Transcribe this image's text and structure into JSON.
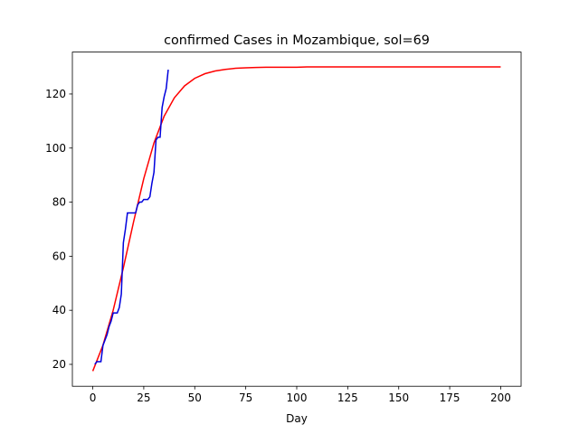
{
  "chart_data": {
    "type": "line",
    "title": "confirmed Cases in Mozambique, sol=69",
    "x_label": "Day",
    "xlim": [
      -10,
      210
    ],
    "xticks": [
      0,
      25,
      50,
      75,
      100,
      125,
      150,
      175,
      200
    ],
    "ylim": [
      11.9,
      135.5
    ],
    "yticks": [
      20,
      40,
      60,
      80,
      100,
      120
    ],
    "series": [
      {
        "color": "#ff0000",
        "x": [
          0,
          5,
          10,
          15,
          20,
          25,
          30,
          35,
          40,
          45,
          50,
          55,
          60,
          65,
          70,
          75,
          80,
          85,
          90,
          95,
          100,
          105,
          110,
          115,
          120,
          125,
          130,
          135,
          140,
          145,
          150,
          155,
          160,
          165,
          170,
          175,
          180,
          185,
          190,
          195,
          200
        ],
        "values": [
          17.5,
          27.1,
          40.0,
          55.7,
          72.7,
          88.7,
          101.9,
          111.8,
          118.6,
          123.0,
          125.8,
          127.5,
          128.5,
          129.1,
          129.5,
          129.7,
          129.8,
          129.9,
          129.9,
          129.9,
          129.9,
          130,
          130,
          130,
          130,
          130,
          130,
          130,
          130,
          130,
          130,
          130,
          130,
          130,
          130,
          130,
          130,
          130,
          130,
          130,
          130
        ]
      },
      {
        "color": "#0000dd",
        "x": [
          1,
          2,
          3,
          4,
          5,
          6,
          7,
          8,
          9,
          10,
          11,
          12,
          13,
          14,
          15,
          16,
          17,
          18,
          19,
          20,
          21,
          22,
          23,
          24,
          25,
          26,
          27,
          28,
          29,
          30,
          31,
          32,
          33,
          34,
          35,
          36,
          37
        ],
        "values": [
          20,
          21,
          21,
          21,
          27,
          29,
          31,
          34,
          36,
          39,
          39,
          39,
          41,
          46,
          65,
          70,
          76,
          76,
          76,
          76,
          76,
          79,
          80,
          80,
          81,
          81,
          81,
          82,
          87,
          91,
          103,
          104,
          104,
          115,
          119,
          122,
          129
        ]
      }
    ]
  }
}
